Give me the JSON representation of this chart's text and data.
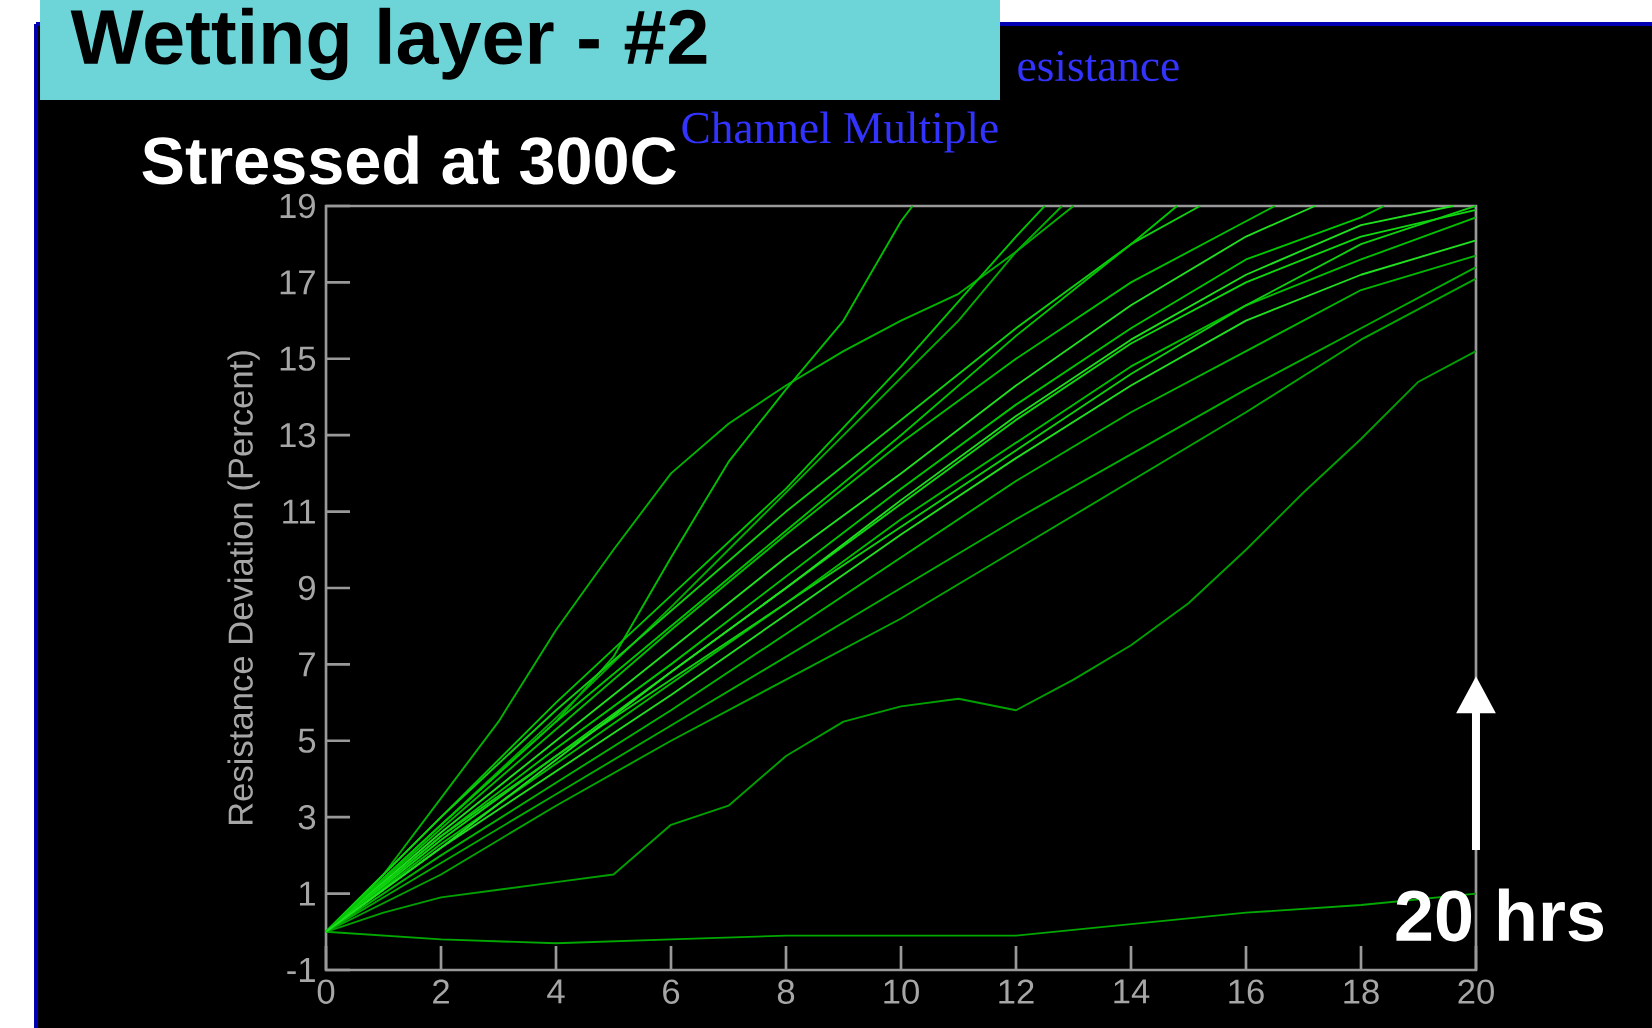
{
  "chart_data": {
    "type": "line",
    "title": "Wetting layer - #2",
    "subtitle": "Stressed at 300C",
    "ylabel": "Resistance Deviation (Percent)",
    "xlim": [
      0,
      20
    ],
    "ylim": [
      -1,
      19
    ],
    "xticks": [
      0,
      2,
      4,
      6,
      8,
      10,
      12,
      14,
      16,
      18,
      20
    ],
    "yticks": [
      -1,
      1,
      3,
      5,
      7,
      9,
      11,
      13,
      15,
      17,
      19
    ],
    "annotations": [
      "20 hrs",
      "esistance",
      "Channel  Multiple"
    ],
    "series": [
      {
        "color": "#00a800",
        "x": [
          0,
          2,
          4,
          6,
          8,
          10,
          12,
          14,
          16,
          18,
          20
        ],
        "values": [
          0,
          -0.2,
          -0.3,
          -0.2,
          -0.1,
          -0.1,
          -0.1,
          0.2,
          0.5,
          0.7,
          1.0
        ]
      },
      {
        "color": "#00a000",
        "x": [
          0,
          1,
          2,
          3,
          4,
          5,
          6,
          7,
          8,
          9,
          10,
          11,
          12,
          13,
          14,
          15,
          16,
          17,
          18,
          19,
          20
        ],
        "values": [
          0,
          0.5,
          0.9,
          1.1,
          1.3,
          1.5,
          2.8,
          3.3,
          4.6,
          5.5,
          5.9,
          6.1,
          5.8,
          6.6,
          7.5,
          8.6,
          10.0,
          11.5,
          12.9,
          14.4,
          15.2
        ]
      },
      {
        "color": "#00b400",
        "x": [
          0,
          1,
          2,
          3,
          4,
          5,
          6,
          7,
          8,
          9,
          10,
          11,
          12,
          13
        ],
        "values": [
          0,
          1.5,
          3.5,
          5.5,
          7.9,
          10.0,
          12.0,
          13.3,
          14.3,
          15.2,
          16.0,
          16.7,
          17.8,
          19
        ]
      },
      {
        "color": "#00c000",
        "x": [
          0,
          2,
          4,
          5,
          6,
          7,
          8,
          9,
          10,
          10.2
        ],
        "values": [
          0,
          2.8,
          5.5,
          7.2,
          9.8,
          12.3,
          14.2,
          16.0,
          18.6,
          19
        ]
      },
      {
        "color": "#00b000",
        "x": [
          0,
          2,
          4,
          6,
          8,
          10,
          11,
          12,
          12.8
        ],
        "values": [
          0,
          2.8,
          5.6,
          8.5,
          11.5,
          14.5,
          16.0,
          17.8,
          19
        ]
      },
      {
        "color": "#00c800",
        "x": [
          0,
          2,
          4,
          6,
          8,
          10,
          12,
          12.5
        ],
        "values": [
          0,
          3.0,
          6.0,
          8.8,
          11.6,
          14.8,
          18.2,
          19
        ]
      },
      {
        "color": "#10d010",
        "x": [
          0,
          2,
          4,
          6,
          8,
          10,
          12,
          14,
          15.2
        ],
        "values": [
          0,
          3.0,
          5.8,
          8.4,
          11.0,
          13.4,
          15.8,
          18.0,
          19
        ]
      },
      {
        "color": "#00c000",
        "x": [
          0,
          2,
          4,
          6,
          8,
          10,
          12,
          14,
          16,
          16.5
        ],
        "values": [
          0,
          2.7,
          5.3,
          7.9,
          10.4,
          12.8,
          15.0,
          17.0,
          18.6,
          19
        ]
      },
      {
        "color": "#20e020",
        "x": [
          0,
          2,
          4,
          6,
          8,
          10,
          12,
          14,
          16,
          17.2
        ],
        "values": [
          0,
          2.6,
          5.0,
          7.4,
          9.8,
          12.0,
          14.3,
          16.4,
          18.2,
          19
        ]
      },
      {
        "color": "#00c800",
        "x": [
          0,
          2,
          4,
          6,
          8,
          10,
          12,
          14,
          16,
          18,
          18.4
        ],
        "values": [
          0,
          2.5,
          4.8,
          7.0,
          9.3,
          11.6,
          13.8,
          15.8,
          17.6,
          18.7,
          19
        ]
      },
      {
        "color": "#10d810",
        "x": [
          0,
          2,
          4,
          6,
          8,
          10,
          12,
          14,
          16,
          18,
          20
        ],
        "values": [
          0,
          2.4,
          4.6,
          6.8,
          9.0,
          11.2,
          13.4,
          15.4,
          17.0,
          18.2,
          18.9
        ]
      },
      {
        "color": "#00c000",
        "x": [
          0,
          2,
          4,
          6,
          8,
          10,
          12,
          14,
          16,
          18,
          20
        ],
        "values": [
          0,
          2.3,
          4.4,
          6.5,
          8.6,
          10.8,
          12.8,
          14.8,
          16.4,
          17.6,
          18.7
        ]
      },
      {
        "color": "#20e020",
        "x": [
          0,
          2,
          4,
          6,
          8,
          10,
          12,
          14,
          16,
          18,
          20
        ],
        "values": [
          0,
          2.2,
          4.2,
          6.2,
          8.3,
          10.4,
          12.4,
          14.3,
          16.0,
          17.2,
          18.1
        ]
      },
      {
        "color": "#00b800",
        "x": [
          0,
          2,
          4,
          6,
          8,
          10,
          12,
          14,
          16,
          18,
          20
        ],
        "values": [
          0,
          2.0,
          3.9,
          5.8,
          7.8,
          9.8,
          11.8,
          13.6,
          15.2,
          16.8,
          17.7
        ]
      },
      {
        "color": "#00b000",
        "x": [
          0,
          2,
          4,
          6,
          8,
          10,
          12,
          14,
          16,
          18,
          20
        ],
        "values": [
          0,
          1.8,
          3.6,
          5.4,
          7.2,
          9.0,
          10.8,
          12.5,
          14.2,
          15.8,
          17.4
        ]
      },
      {
        "color": "#00a800",
        "x": [
          0,
          2,
          4,
          6,
          8,
          10,
          12,
          14,
          16,
          18,
          20
        ],
        "values": [
          0,
          1.5,
          3.3,
          5.0,
          6.6,
          8.2,
          10.0,
          11.8,
          13.6,
          15.5,
          17.1
        ]
      },
      {
        "color": "#10d010",
        "x": [
          0,
          2,
          4,
          6,
          8,
          10,
          12,
          14,
          16,
          18,
          20
        ],
        "values": [
          0,
          2.5,
          4.6,
          6.6,
          8.6,
          10.6,
          12.6,
          14.6,
          16.4,
          18.0,
          19.0
        ]
      },
      {
        "color": "#00c800",
        "x": [
          0,
          2,
          4,
          6,
          8,
          10,
          12,
          14,
          14.8
        ],
        "values": [
          0,
          2.8,
          5.5,
          8.0,
          10.5,
          13.0,
          15.6,
          18.0,
          19
        ]
      },
      {
        "color": "#20e020",
        "x": [
          0,
          2,
          4,
          6,
          8,
          10,
          12,
          14,
          16,
          18,
          19.6
        ],
        "values": [
          0,
          2.2,
          4.5,
          6.8,
          9.0,
          11.3,
          13.5,
          15.5,
          17.2,
          18.5,
          19
        ]
      }
    ]
  }
}
